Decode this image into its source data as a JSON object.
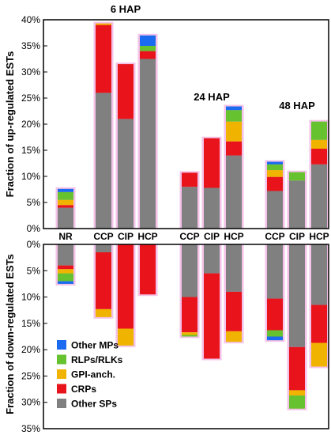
{
  "chart_data": {
    "type": "bar",
    "stacked": true,
    "panels": [
      {
        "id": "up",
        "ylabel": "Fraction of up-regulated ESTs",
        "ylim": [
          0,
          40
        ],
        "ticks": [
          "0%",
          "5%",
          "10%",
          "15%",
          "20%",
          "25%",
          "30%",
          "35%",
          "40%"
        ],
        "direction": "up"
      },
      {
        "id": "down",
        "ylabel": "Fraction of down-regulated ESTs",
        "ylim": [
          0,
          35
        ],
        "ticks": [
          "0%",
          "5%",
          "10%",
          "15%",
          "20%",
          "25%",
          "30%",
          "35%"
        ],
        "direction": "down"
      }
    ],
    "groups": [
      {
        "label": "",
        "categories": [
          "NR"
        ]
      },
      {
        "label": "6 HAP",
        "categories": [
          "CCP",
          "CIP",
          "HCP"
        ]
      },
      {
        "label": "24 HAP",
        "categories": [
          "CCP",
          "CIP",
          "HCP"
        ]
      },
      {
        "label": "48 HAP",
        "categories": [
          "CCP",
          "CIP",
          "HCP"
        ]
      }
    ],
    "categories": [
      "NR",
      "CCP",
      "CIP",
      "HCP",
      "CCP",
      "CIP",
      "HCP",
      "CCP",
      "CIP",
      "HCP"
    ],
    "series": [
      {
        "name": "Other SPs",
        "color": "#808080",
        "up": [
          4.0,
          26.0,
          21.0,
          32.5,
          8.0,
          7.8,
          14.0,
          7.2,
          9.2,
          12.3
        ],
        "down": [
          4.0,
          1.5,
          0.0,
          0.0,
          10.0,
          5.5,
          9.0,
          10.3,
          19.5,
          11.5
        ]
      },
      {
        "name": "CRPs",
        "color": "#e8131b",
        "up": [
          0.5,
          13.0,
          10.5,
          1.5,
          2.7,
          9.5,
          2.7,
          2.7,
          0.0,
          3.0
        ],
        "down": [
          0.7,
          10.8,
          16.0,
          9.5,
          6.7,
          16.2,
          7.5,
          6.0,
          8.2,
          7.2
        ]
      },
      {
        "name": "GPI-anch.",
        "color": "#f0b400",
        "up": [
          1.0,
          0.3,
          0.0,
          0.0,
          0.0,
          0.0,
          3.8,
          1.3,
          0.0,
          1.7
        ],
        "down": [
          0.8,
          1.5,
          3.2,
          0.0,
          0.5,
          0.0,
          2.0,
          0.0,
          1.0,
          4.5
        ]
      },
      {
        "name": "RLPs/RLKs",
        "color": "#66c22e",
        "up": [
          1.5,
          0.0,
          0.0,
          1.0,
          0.0,
          0.0,
          2.2,
          1.1,
          1.6,
          3.5
        ],
        "down": [
          1.5,
          0.0,
          0.0,
          0.0,
          0.3,
          0.0,
          0.0,
          1.2,
          2.5,
          0.0
        ]
      },
      {
        "name": "Other MPs",
        "color": "#1a6bf0",
        "up": [
          0.6,
          0.0,
          0.0,
          2.0,
          0.0,
          0.0,
          0.7,
          0.5,
          0.0,
          0.0
        ],
        "down": [
          0.5,
          0.0,
          0.0,
          0.0,
          0.0,
          0.0,
          0.0,
          0.7,
          0.0,
          0.0
        ]
      }
    ],
    "legend": {
      "placement": "bottom-left",
      "order": [
        "Other MPs",
        "RLPs/RLKs",
        "GPI-anch.",
        "CRPs",
        "Other SPs"
      ]
    },
    "highlight_color": "#f4c2e8"
  }
}
